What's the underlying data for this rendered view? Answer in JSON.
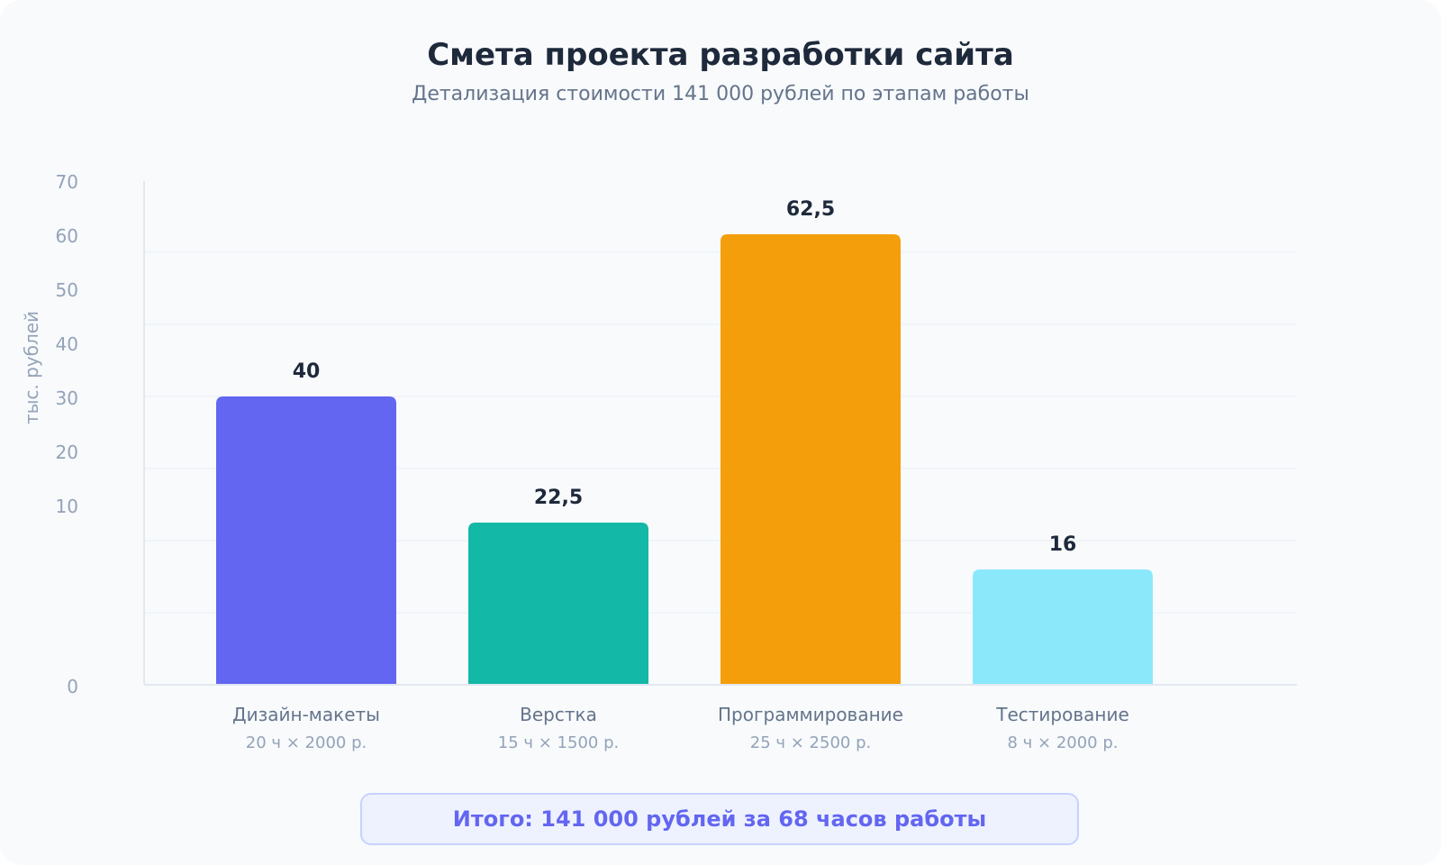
{
  "chart_data": {
    "type": "bar",
    "title": "Смета проекта разработки сайта",
    "subtitle": "Детализация стоимости 141 000 рублей по этапам работы",
    "ylabel": "тыс. рублей",
    "xlabel": "",
    "ylim": [
      0,
      70
    ],
    "yticks": [
      "0",
      "10",
      "20",
      "30",
      "40",
      "50",
      "60",
      "70"
    ],
    "grid": true,
    "categories": [
      "Дизайн-макеты",
      "Верстка",
      "Программирование",
      "Тестирование"
    ],
    "category_details": [
      "20 ч × 2000 р.",
      "15 ч × 1500 р.",
      "25 ч × 2500 р.",
      "8 ч × 2000 р."
    ],
    "values": [
      40,
      22.5,
      62.5,
      16
    ],
    "value_labels": [
      "40",
      "22,5",
      "62,5",
      "16"
    ],
    "colors": [
      "#6366f1",
      "#14b8a6",
      "#f59e0b",
      "#8be8fb"
    ]
  },
  "summary": "Итого: 141 000 рублей за 68 часов работы"
}
